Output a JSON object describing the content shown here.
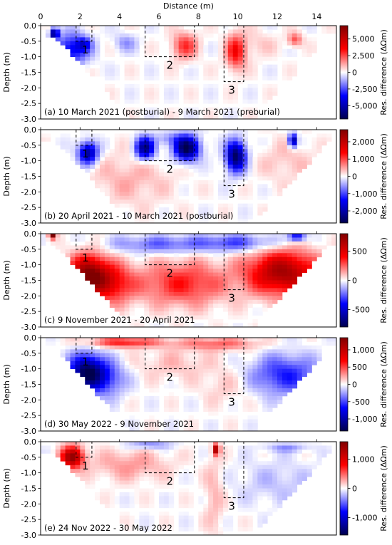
{
  "chart_data": {
    "type": "heatmap",
    "xlabel": "Distance (m)",
    "ylabel": "Depth (m)",
    "xlim": [
      0,
      15
    ],
    "ylim": [
      -3.0,
      0.0
    ],
    "x_ticks": [
      "0",
      "2",
      "4",
      "6",
      "8",
      "10",
      "12",
      "14"
    ],
    "y_ticks": [
      "0.0",
      "-0.5",
      "-1.0",
      "-1.5",
      "-2.0",
      "-2.5",
      "-3.0"
    ],
    "colorbar_label": "Res. difference (ΔΩm)",
    "colormap": "seismic",
    "colors": {
      "negative": "#00004c",
      "blue": "#0000ff",
      "zero": "#ffffff",
      "red": "#ff0000",
      "positive": "#7f0000"
    },
    "grave_boxes": [
      {
        "label": "1",
        "x_range": [
          1.8,
          2.6
        ],
        "depth_range": [
          0.0,
          -0.5
        ]
      },
      {
        "label": "2",
        "x_range": [
          5.3,
          7.8
        ],
        "depth_range": [
          0.0,
          -1.0
        ]
      },
      {
        "label": "3",
        "x_range": [
          9.3,
          10.3
        ],
        "depth_range": [
          0.0,
          -1.8
        ]
      }
    ],
    "panels": [
      {
        "title": "(a) 10 March 2021 (postburial) - 9 March 2021 (preburial)",
        "vmax": 7000,
        "cbar_ticks": [
          5000,
          2500,
          0,
          -2500,
          -5000
        ],
        "cbar_tick_labels": [
          "5,000",
          "2,500",
          "0",
          "-2,500",
          "-5,000"
        ],
        "features": [
          {
            "x": 0.7,
            "y": -0.25,
            "sx": 0.15,
            "sy": 0.12,
            "v": -0.9
          },
          {
            "x": 1.6,
            "y": -0.75,
            "sx": 0.6,
            "sy": 0.35,
            "v": -0.55
          },
          {
            "x": 2.2,
            "y": -0.6,
            "sx": 0.25,
            "sy": 0.15,
            "v": -0.35
          },
          {
            "x": 4.3,
            "y": -0.55,
            "sx": 0.4,
            "sy": 0.2,
            "v": -0.2
          },
          {
            "x": 7.3,
            "y": -0.65,
            "sx": 0.45,
            "sy": 0.3,
            "v": 0.4
          },
          {
            "x": 9.9,
            "y": -0.85,
            "sx": 0.35,
            "sy": 0.4,
            "v": 0.5
          },
          {
            "x": 12.9,
            "y": -0.45,
            "sx": 0.25,
            "sy": 0.15,
            "v": 0.35
          },
          {
            "x": 11.0,
            "y": -0.6,
            "sx": 0.7,
            "sy": 0.3,
            "v": 0.1
          }
        ]
      },
      {
        "title": "(b) 20 April 2021 - 10 March 2021 (postburial)",
        "vmax": 2700,
        "cbar_ticks": [
          2000,
          1000,
          0,
          -1000,
          -2000
        ],
        "cbar_tick_labels": [
          "2,000",
          "1,000",
          "0",
          "-1,000",
          "-2,000"
        ],
        "features": [
          {
            "x": 2.4,
            "y": -0.75,
            "sx": 0.35,
            "sy": 0.25,
            "v": -0.8
          },
          {
            "x": 5.3,
            "y": -0.6,
            "sx": 0.35,
            "sy": 0.25,
            "v": -0.85
          },
          {
            "x": 7.4,
            "y": -0.6,
            "sx": 0.45,
            "sy": 0.28,
            "v": -1.0
          },
          {
            "x": 9.9,
            "y": -0.85,
            "sx": 0.35,
            "sy": 0.35,
            "v": -0.95
          },
          {
            "x": 12.8,
            "y": -0.35,
            "sx": 0.15,
            "sy": 0.15,
            "v": -0.85
          },
          {
            "x": 4.5,
            "y": -1.6,
            "sx": 1.5,
            "sy": 0.6,
            "v": 0.15
          },
          {
            "x": 12.5,
            "y": -1.0,
            "sx": 1.0,
            "sy": 0.5,
            "v": 0.12
          },
          {
            "x": 6.5,
            "y": -0.3,
            "sx": 0.5,
            "sy": 0.15,
            "v": -0.2
          }
        ]
      },
      {
        "title": "(c) 9 November 2021 - 20 April 2021",
        "vmax": 800,
        "cbar_ticks": [
          500,
          0,
          -500
        ],
        "cbar_tick_labels": [
          "500",
          "0",
          "-500"
        ],
        "features": [
          {
            "x": 2.4,
            "y": -1.3,
            "sx": 0.7,
            "sy": 0.45,
            "v": 0.9
          },
          {
            "x": 3.6,
            "y": -1.6,
            "sx": 0.8,
            "sy": 0.45,
            "v": 0.5
          },
          {
            "x": 7.2,
            "y": -1.6,
            "sx": 1.6,
            "sy": 0.5,
            "v": 0.45
          },
          {
            "x": 12.3,
            "y": -1.25,
            "sx": 1.3,
            "sy": 0.5,
            "v": 0.85
          },
          {
            "x": 6.0,
            "y": -0.35,
            "sx": 1.8,
            "sy": 0.2,
            "v": -0.3
          },
          {
            "x": 10.0,
            "y": -0.3,
            "sx": 1.5,
            "sy": 0.2,
            "v": -0.35
          },
          {
            "x": 13.0,
            "y": -0.1,
            "sx": 0.3,
            "sy": 0.1,
            "v": -0.6
          },
          {
            "x": 0.6,
            "y": -0.05,
            "sx": 0.12,
            "sy": 0.08,
            "v": 1.0
          }
        ]
      },
      {
        "title": "(d) 30 May 2022 - 9 November 2021",
        "vmax": 1350,
        "cbar_ticks": [
          1000,
          500,
          0,
          -500,
          -1000
        ],
        "cbar_tick_labels": [
          "1,000",
          "500",
          "0",
          "-500",
          "-1,000"
        ],
        "features": [
          {
            "x": 2.3,
            "y": -1.1,
            "sx": 0.6,
            "sy": 0.4,
            "v": -0.9
          },
          {
            "x": 3.3,
            "y": -1.3,
            "sx": 0.7,
            "sy": 0.4,
            "v": -0.4
          },
          {
            "x": 12.4,
            "y": -1.2,
            "sx": 1.2,
            "sy": 0.45,
            "v": -0.45
          },
          {
            "x": 4.2,
            "y": -0.15,
            "sx": 1.3,
            "sy": 0.12,
            "v": 0.45
          },
          {
            "x": 9.0,
            "y": -0.2,
            "sx": 1.5,
            "sy": 0.15,
            "v": 0.3
          },
          {
            "x": 6.8,
            "y": -0.85,
            "sx": 1.5,
            "sy": 0.35,
            "v": 0.12
          },
          {
            "x": 9.3,
            "y": -1.6,
            "sx": 0.8,
            "sy": 0.4,
            "v": 0.1
          }
        ]
      },
      {
        "title": "(e) 24 Nov 2022 - 30 May 2022",
        "vmax": 1600,
        "cbar_ticks": [
          1000,
          0,
          -1000
        ],
        "cbar_tick_labels": [
          "1,000",
          "0",
          "-1,000"
        ],
        "features": [
          {
            "x": 1.6,
            "y": -0.5,
            "sx": 0.4,
            "sy": 0.25,
            "v": 0.9
          },
          {
            "x": 8.9,
            "y": -0.25,
            "sx": 0.12,
            "sy": 0.12,
            "v": 0.85
          },
          {
            "x": 4.5,
            "y": -0.75,
            "sx": 1.4,
            "sy": 0.35,
            "v": 0.2
          },
          {
            "x": 8.8,
            "y": -1.7,
            "sx": 0.35,
            "sy": 0.9,
            "v": 0.15
          },
          {
            "x": 12.0,
            "y": -1.3,
            "sx": 1.5,
            "sy": 0.5,
            "v": -0.12
          },
          {
            "x": 5.5,
            "y": -0.1,
            "sx": 0.8,
            "sy": 0.1,
            "v": -0.25
          },
          {
            "x": 12.5,
            "y": -0.2,
            "sx": 0.8,
            "sy": 0.1,
            "v": -0.2
          }
        ]
      }
    ]
  }
}
